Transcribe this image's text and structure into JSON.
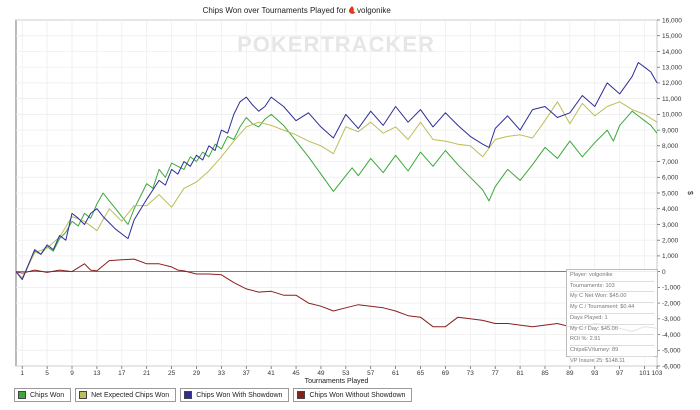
{
  "chart_data": {
    "type": "line",
    "title": "Chips Won over Tournaments Played for",
    "player": "volgonike",
    "xlabel": "Tournaments Played",
    "ylabel": "$",
    "xlim": [
      0,
      103
    ],
    "ylim": [
      -6000,
      16000
    ],
    "xticks": [
      1,
      5,
      9,
      13,
      17,
      21,
      25,
      29,
      33,
      37,
      41,
      45,
      49,
      53,
      57,
      61,
      65,
      69,
      73,
      77,
      81,
      85,
      89,
      93,
      97,
      101,
      103
    ],
    "yticks": [
      -6000,
      -5000,
      -4000,
      -3000,
      -2000,
      -1000,
      0,
      1000,
      2000,
      3000,
      4000,
      5000,
      6000,
      7000,
      8000,
      9000,
      10000,
      11000,
      12000,
      13000,
      14000,
      15000,
      16000
    ],
    "ytick_labels": [
      "-6,000",
      "-5,000",
      "-4,000",
      "-3,000",
      "-2,000",
      "-1,000",
      "0",
      "1,000",
      "2,000",
      "3,000",
      "4,000",
      "5,000",
      "6,000",
      "7,000",
      "8,000",
      "9,000",
      "10,000",
      "11,000",
      "12,000",
      "13,000",
      "14,000",
      "15,000",
      "16,000"
    ],
    "watermark": "POKERTRACKER",
    "series": [
      {
        "name": "Chips Won",
        "color": "#3aa83a",
        "points": [
          [
            0,
            0
          ],
          [
            1,
            -500
          ],
          [
            3,
            1300
          ],
          [
            4,
            1100
          ],
          [
            5,
            1600
          ],
          [
            6,
            1300
          ],
          [
            7,
            2100
          ],
          [
            8,
            2500
          ],
          [
            9,
            3200
          ],
          [
            10,
            2900
          ],
          [
            11,
            3700
          ],
          [
            12,
            3400
          ],
          [
            13,
            4300
          ],
          [
            14,
            5000
          ],
          [
            15,
            4500
          ],
          [
            16,
            4000
          ],
          [
            17,
            3500
          ],
          [
            18,
            3000
          ],
          [
            19,
            4000
          ],
          [
            20,
            4800
          ],
          [
            21,
            5600
          ],
          [
            22,
            5300
          ],
          [
            23,
            6500
          ],
          [
            24,
            6000
          ],
          [
            25,
            6900
          ],
          [
            26,
            6700
          ],
          [
            27,
            6500
          ],
          [
            28,
            7300
          ],
          [
            29,
            7000
          ],
          [
            30,
            7600
          ],
          [
            31,
            7300
          ],
          [
            32,
            8100
          ],
          [
            33,
            7800
          ],
          [
            34,
            8600
          ],
          [
            35,
            8400
          ],
          [
            36,
            9200
          ],
          [
            37,
            9800
          ],
          [
            38,
            9400
          ],
          [
            39,
            9200
          ],
          [
            40,
            9700
          ],
          [
            41,
            10000
          ],
          [
            43,
            9300
          ],
          [
            45,
            8300
          ],
          [
            47,
            7300
          ],
          [
            49,
            6200
          ],
          [
            51,
            5100
          ],
          [
            53,
            6100
          ],
          [
            54,
            6600
          ],
          [
            55,
            6100
          ],
          [
            57,
            7200
          ],
          [
            59,
            6300
          ],
          [
            61,
            7400
          ],
          [
            63,
            6400
          ],
          [
            65,
            7600
          ],
          [
            67,
            6700
          ],
          [
            69,
            7700
          ],
          [
            71,
            6800
          ],
          [
            73,
            6000
          ],
          [
            75,
            5200
          ],
          [
            76,
            4500
          ],
          [
            77,
            5400
          ],
          [
            79,
            6500
          ],
          [
            81,
            5800
          ],
          [
            83,
            6800
          ],
          [
            85,
            7900
          ],
          [
            87,
            7200
          ],
          [
            89,
            8300
          ],
          [
            91,
            7300
          ],
          [
            93,
            8200
          ],
          [
            95,
            9000
          ],
          [
            96,
            8300
          ],
          [
            97,
            9300
          ],
          [
            99,
            10200
          ],
          [
            100,
            9900
          ],
          [
            101,
            9600
          ],
          [
            102,
            9300
          ],
          [
            103,
            8800
          ]
        ]
      },
      {
        "name": "Net Expected Chips Won",
        "color": "#bdbd5a",
        "points": [
          [
            0,
            0
          ],
          [
            1,
            -400
          ],
          [
            3,
            1200
          ],
          [
            5,
            1500
          ],
          [
            7,
            2200
          ],
          [
            9,
            3500
          ],
          [
            11,
            3200
          ],
          [
            13,
            2600
          ],
          [
            15,
            4000
          ],
          [
            17,
            3200
          ],
          [
            19,
            4200
          ],
          [
            21,
            4200
          ],
          [
            23,
            4900
          ],
          [
            25,
            4100
          ],
          [
            27,
            5300
          ],
          [
            29,
            5700
          ],
          [
            31,
            6400
          ],
          [
            33,
            7300
          ],
          [
            35,
            8300
          ],
          [
            37,
            9200
          ],
          [
            39,
            9500
          ],
          [
            41,
            9300
          ],
          [
            43,
            9000
          ],
          [
            45,
            8700
          ],
          [
            47,
            8300
          ],
          [
            49,
            8000
          ],
          [
            51,
            7500
          ],
          [
            53,
            9200
          ],
          [
            55,
            8900
          ],
          [
            57,
            9500
          ],
          [
            59,
            8800
          ],
          [
            61,
            9200
          ],
          [
            63,
            8400
          ],
          [
            65,
            9500
          ],
          [
            67,
            8400
          ],
          [
            69,
            8300
          ],
          [
            71,
            8100
          ],
          [
            73,
            8000
          ],
          [
            75,
            7300
          ],
          [
            77,
            8400
          ],
          [
            79,
            8600
          ],
          [
            81,
            8700
          ],
          [
            83,
            8500
          ],
          [
            85,
            9600
          ],
          [
            87,
            10800
          ],
          [
            89,
            9400
          ],
          [
            91,
            10700
          ],
          [
            93,
            9900
          ],
          [
            95,
            10500
          ],
          [
            97,
            10800
          ],
          [
            99,
            10300
          ],
          [
            101,
            10000
          ],
          [
            103,
            9500
          ]
        ]
      },
      {
        "name": "Chips Won With Showdown",
        "color": "#2d2d9a",
        "points": [
          [
            0,
            0
          ],
          [
            1,
            -500
          ],
          [
            3,
            1400
          ],
          [
            4,
            1100
          ],
          [
            5,
            1700
          ],
          [
            6,
            1400
          ],
          [
            7,
            2300
          ],
          [
            8,
            2000
          ],
          [
            9,
            3700
          ],
          [
            10,
            3400
          ],
          [
            11,
            3000
          ],
          [
            12,
            3700
          ],
          [
            13,
            4000
          ],
          [
            14,
            3500
          ],
          [
            15,
            3100
          ],
          [
            16,
            2700
          ],
          [
            17,
            2400
          ],
          [
            18,
            2100
          ],
          [
            19,
            3300
          ],
          [
            21,
            4600
          ],
          [
            22,
            5200
          ],
          [
            23,
            5800
          ],
          [
            24,
            5500
          ],
          [
            25,
            6500
          ],
          [
            26,
            6200
          ],
          [
            27,
            7000
          ],
          [
            28,
            6700
          ],
          [
            29,
            7400
          ],
          [
            30,
            7100
          ],
          [
            31,
            8000
          ],
          [
            32,
            7700
          ],
          [
            33,
            9000
          ],
          [
            34,
            8800
          ],
          [
            35,
            10000
          ],
          [
            36,
            10800
          ],
          [
            37,
            11100
          ],
          [
            38,
            10600
          ],
          [
            39,
            10200
          ],
          [
            40,
            10500
          ],
          [
            41,
            11100
          ],
          [
            43,
            10500
          ],
          [
            45,
            9600
          ],
          [
            47,
            10100
          ],
          [
            49,
            9200
          ],
          [
            51,
            8500
          ],
          [
            53,
            10000
          ],
          [
            55,
            9100
          ],
          [
            57,
            10200
          ],
          [
            59,
            9300
          ],
          [
            61,
            10500
          ],
          [
            63,
            9500
          ],
          [
            65,
            10300
          ],
          [
            67,
            9200
          ],
          [
            69,
            10100
          ],
          [
            71,
            9300
          ],
          [
            73,
            8600
          ],
          [
            75,
            8100
          ],
          [
            76,
            7900
          ],
          [
            77,
            9100
          ],
          [
            79,
            9900
          ],
          [
            81,
            9000
          ],
          [
            83,
            10300
          ],
          [
            85,
            10500
          ],
          [
            87,
            9800
          ],
          [
            89,
            10100
          ],
          [
            91,
            11200
          ],
          [
            93,
            10500
          ],
          [
            95,
            12000
          ],
          [
            97,
            11300
          ],
          [
            99,
            12400
          ],
          [
            100,
            13300
          ],
          [
            101,
            13000
          ],
          [
            102,
            12700
          ],
          [
            103,
            12000
          ]
        ]
      },
      {
        "name": "Chips Won Without Showdown",
        "color": "#8a1e1e",
        "points": [
          [
            0,
            0
          ],
          [
            1,
            -100
          ],
          [
            3,
            100
          ],
          [
            5,
            -50
          ],
          [
            7,
            100
          ],
          [
            9,
            0
          ],
          [
            11,
            500
          ],
          [
            12,
            100
          ],
          [
            13,
            50
          ],
          [
            15,
            700
          ],
          [
            17,
            750
          ],
          [
            19,
            800
          ],
          [
            21,
            500
          ],
          [
            23,
            500
          ],
          [
            25,
            300
          ],
          [
            26,
            100
          ],
          [
            27,
            50
          ],
          [
            29,
            -150
          ],
          [
            31,
            -150
          ],
          [
            33,
            -200
          ],
          [
            35,
            -700
          ],
          [
            37,
            -1100
          ],
          [
            39,
            -1300
          ],
          [
            41,
            -1250
          ],
          [
            43,
            -1500
          ],
          [
            45,
            -1500
          ],
          [
            47,
            -2000
          ],
          [
            49,
            -2200
          ],
          [
            51,
            -2500
          ],
          [
            53,
            -2300
          ],
          [
            55,
            -2100
          ],
          [
            57,
            -2200
          ],
          [
            59,
            -2300
          ],
          [
            61,
            -2500
          ],
          [
            63,
            -2800
          ],
          [
            65,
            -2900
          ],
          [
            67,
            -3500
          ],
          [
            69,
            -3500
          ],
          [
            71,
            -2900
          ],
          [
            73,
            -3000
          ],
          [
            75,
            -3100
          ],
          [
            77,
            -3300
          ],
          [
            79,
            -3300
          ],
          [
            81,
            -3400
          ],
          [
            83,
            -3500
          ],
          [
            85,
            -3400
          ],
          [
            87,
            -3300
          ],
          [
            89,
            -3500
          ],
          [
            91,
            -3600
          ],
          [
            93,
            -3300
          ],
          [
            95,
            -3400
          ],
          [
            97,
            -3600
          ],
          [
            99,
            -3800
          ],
          [
            101,
            -3500
          ],
          [
            103,
            -3600
          ]
        ]
      }
    ],
    "legend": "bottom-left"
  },
  "stats": {
    "player": "Player: volgonike",
    "tournaments": "Tournaments: 103",
    "net_won": "My C Net Won: $45.00",
    "per_tournament": "My C / Tournament: $0.44",
    "days_played": "Days Played: 1",
    "per_day": "My C / Day: $45.00",
    "roi": "ROI %: 2.91",
    "chipsev": "ChipsEV/turney: 89",
    "vpinsure": "VP Insure 25: $148.11"
  }
}
